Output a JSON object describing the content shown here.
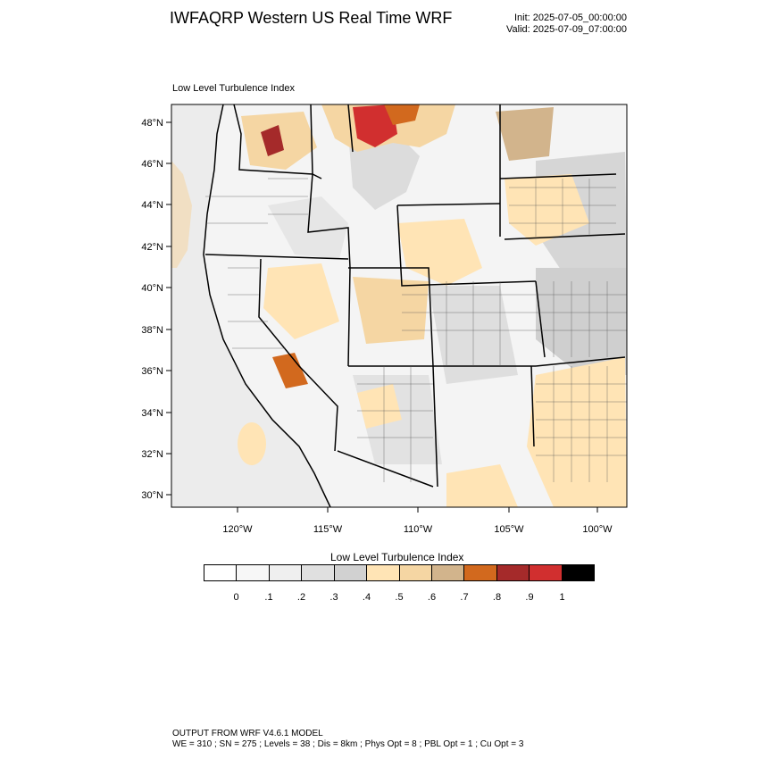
{
  "header": {
    "title": "IWFAQRP Western US Real Time WRF",
    "init": "Init: 2025-07-05_00:00:00",
    "valid": "Valid: 2025-07-09_07:00:00"
  },
  "panel": {
    "label": "Low Level Turbulence Index"
  },
  "axes": {
    "lat_labels": [
      "48°N",
      "46°N",
      "44°N",
      "42°N",
      "40°N",
      "38°N",
      "36°N",
      "34°N",
      "32°N",
      "30°N"
    ],
    "lon_labels": [
      "120°W",
      "115°W",
      "110°W",
      "105°W",
      "100°W"
    ]
  },
  "colorbar": {
    "title": "Low Level Turbulence Index",
    "colors": [
      "#ffffff",
      "#f7f7f7",
      "#efefef",
      "#e0e0e0",
      "#d1d1d1",
      "#ffe4b5",
      "#f5d6a3",
      "#d2b48c",
      "#d2691e",
      "#a52a2a",
      "#d12f2f",
      "#000000"
    ],
    "ticks": [
      "0",
      ".1",
      ".2",
      ".3",
      ".4",
      ".5",
      ".6",
      ".7",
      ".8",
      ".9",
      "1"
    ]
  },
  "footer": {
    "line1": "OUTPUT FROM WRF V4.6.1 MODEL",
    "line2": "WE = 310 ; SN = 275 ; Levels = 38 ; Dis = 8km ; Phys Opt = 8 ; PBL Opt = 1 ; Cu Opt = 3"
  }
}
